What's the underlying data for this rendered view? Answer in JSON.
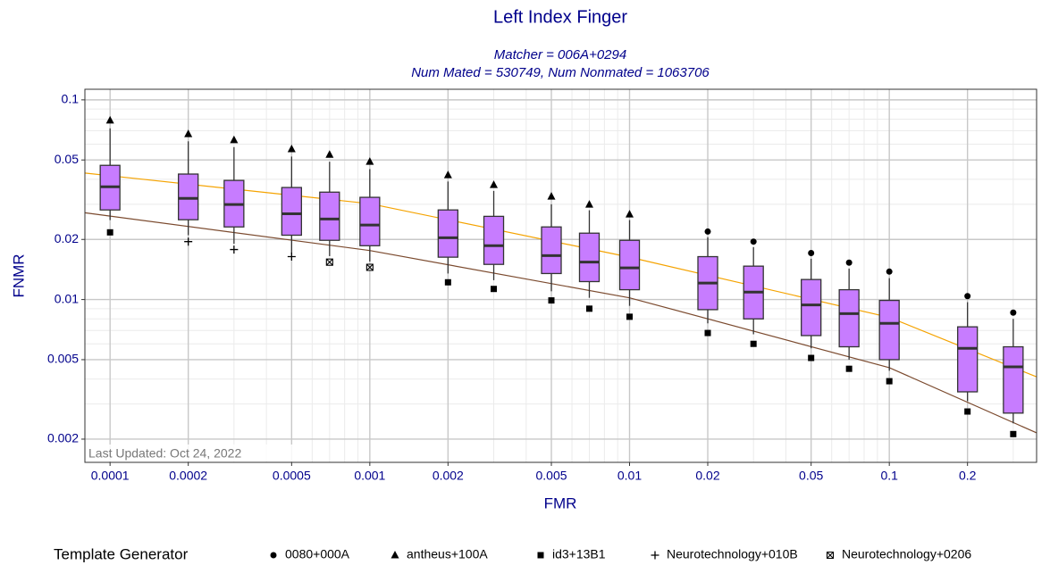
{
  "chart_data": {
    "type": "box",
    "title": "Left Index Finger",
    "subtitle": [
      "Matcher = 006A+0294",
      "Num Mated = 530749, Num Nonmated = 1063706"
    ],
    "xlabel": "FMR",
    "ylabel": "FNMR",
    "annotation": "Last Updated: Oct 24, 2022",
    "xscale": "log",
    "yscale": "log",
    "xlim": [
      8e-05,
      0.369
    ],
    "ylim": [
      0.00153,
      0.113
    ],
    "xticks": [
      0.0001,
      0.0002,
      0.0005,
      0.001,
      0.002,
      0.005,
      0.01,
      0.02,
      0.05,
      0.1,
      0.2
    ],
    "yticks": [
      0.002,
      0.005,
      0.01,
      0.02,
      0.05,
      0.1
    ],
    "xminorticks": [
      0.0003,
      0.0004,
      0.0006,
      0.0007,
      0.0008,
      0.0009,
      0.003,
      0.004,
      0.006,
      0.007,
      0.008,
      0.009,
      0.03,
      0.04,
      0.06,
      0.07,
      0.08,
      0.09,
      0.3
    ],
    "yminorticks": [
      0.003,
      0.004,
      0.006,
      0.007,
      0.008,
      0.009,
      0.03,
      0.04,
      0.06,
      0.07,
      0.08,
      0.09
    ],
    "grid": true,
    "box_color": "#c77cff",
    "boxes": {
      "x": [
        0.0001,
        0.0002,
        0.0003,
        0.0005,
        0.0007,
        0.001,
        0.002,
        0.003,
        0.005,
        0.007,
        0.01,
        0.02,
        0.03,
        0.05,
        0.07,
        0.1,
        0.2,
        0.3
      ],
      "low": [
        0.025,
        0.021,
        0.019,
        0.017,
        0.0165,
        0.0155,
        0.0135,
        0.0125,
        0.011,
        0.0102,
        0.0093,
        0.0076,
        0.0067,
        0.0057,
        0.005,
        0.0044,
        0.0031,
        0.0024
      ],
      "q1": [
        0.0281,
        0.0251,
        0.0231,
        0.021,
        0.0198,
        0.0186,
        0.0163,
        0.015,
        0.0135,
        0.0123,
        0.0112,
        0.0089,
        0.008,
        0.0066,
        0.0058,
        0.005,
        0.00345,
        0.0027
      ],
      "median": [
        0.0367,
        0.0321,
        0.0299,
        0.0269,
        0.0253,
        0.0236,
        0.0204,
        0.0186,
        0.0166,
        0.0154,
        0.0144,
        0.0121,
        0.0109,
        0.0094,
        0.0085,
        0.0076,
        0.0057,
        0.0046
      ],
      "q3": [
        0.047,
        0.0425,
        0.0395,
        0.0364,
        0.0345,
        0.0325,
        0.0281,
        0.0261,
        0.0231,
        0.0215,
        0.0198,
        0.0164,
        0.0147,
        0.0126,
        0.0112,
        0.0099,
        0.0073,
        0.0058
      ],
      "high": [
        0.072,
        0.062,
        0.058,
        0.052,
        0.049,
        0.045,
        0.039,
        0.035,
        0.03,
        0.028,
        0.025,
        0.0205,
        0.0183,
        0.016,
        0.0143,
        0.0128,
        0.0097,
        0.008
      ]
    },
    "legend_title": "Template Generator",
    "series": [
      {
        "name": "0080+000A",
        "shape": "circle",
        "x": [
          0.02,
          0.03,
          0.05,
          0.07,
          0.1,
          0.2,
          0.3
        ],
        "values": [
          0.0219,
          0.0195,
          0.0171,
          0.0153,
          0.0138,
          0.0104,
          0.0086
        ]
      },
      {
        "name": "antheus+100A",
        "shape": "triangle",
        "x": [
          0.0001,
          0.0002,
          0.0003,
          0.0005,
          0.0007,
          0.001,
          0.002,
          0.003,
          0.005,
          0.007,
          0.01
        ],
        "values": [
          0.0789,
          0.0675,
          0.0629,
          0.0567,
          0.0532,
          0.049,
          0.042,
          0.0375,
          0.0328,
          0.0299,
          0.0267
        ]
      },
      {
        "name": "id3+13B1",
        "shape": "square",
        "x": [
          0.0001,
          0.002,
          0.003,
          0.005,
          0.007,
          0.01,
          0.02,
          0.03,
          0.05,
          0.07,
          0.1,
          0.2,
          0.3
        ],
        "values": [
          0.0217,
          0.0122,
          0.0113,
          0.0099,
          0.009,
          0.0082,
          0.0068,
          0.006,
          0.0051,
          0.0045,
          0.0039,
          0.00275,
          0.00212
        ]
      },
      {
        "name": "Neurotechnology+010B",
        "shape": "plus",
        "x": [
          0.0002,
          0.0003,
          0.0005
        ],
        "values": [
          0.0195,
          0.0178,
          0.0164
        ]
      },
      {
        "name": "Neurotechnology+0206",
        "shape": "xsquare",
        "x": [
          0.0007,
          0.001
        ],
        "values": [
          0.0154,
          0.0145
        ]
      }
    ],
    "curves": [
      {
        "color": "#f5a300",
        "x": [
          8e-05,
          0.001,
          0.01,
          0.1,
          0.369
        ],
        "values": [
          0.043,
          0.0302,
          0.0163,
          0.00814,
          0.0041
        ]
      },
      {
        "color": "#7b4a2e",
        "x": [
          8e-05,
          0.001,
          0.01,
          0.1,
          0.369
        ],
        "values": [
          0.0272,
          0.0176,
          0.0102,
          0.00456,
          0.00215
        ]
      }
    ]
  }
}
